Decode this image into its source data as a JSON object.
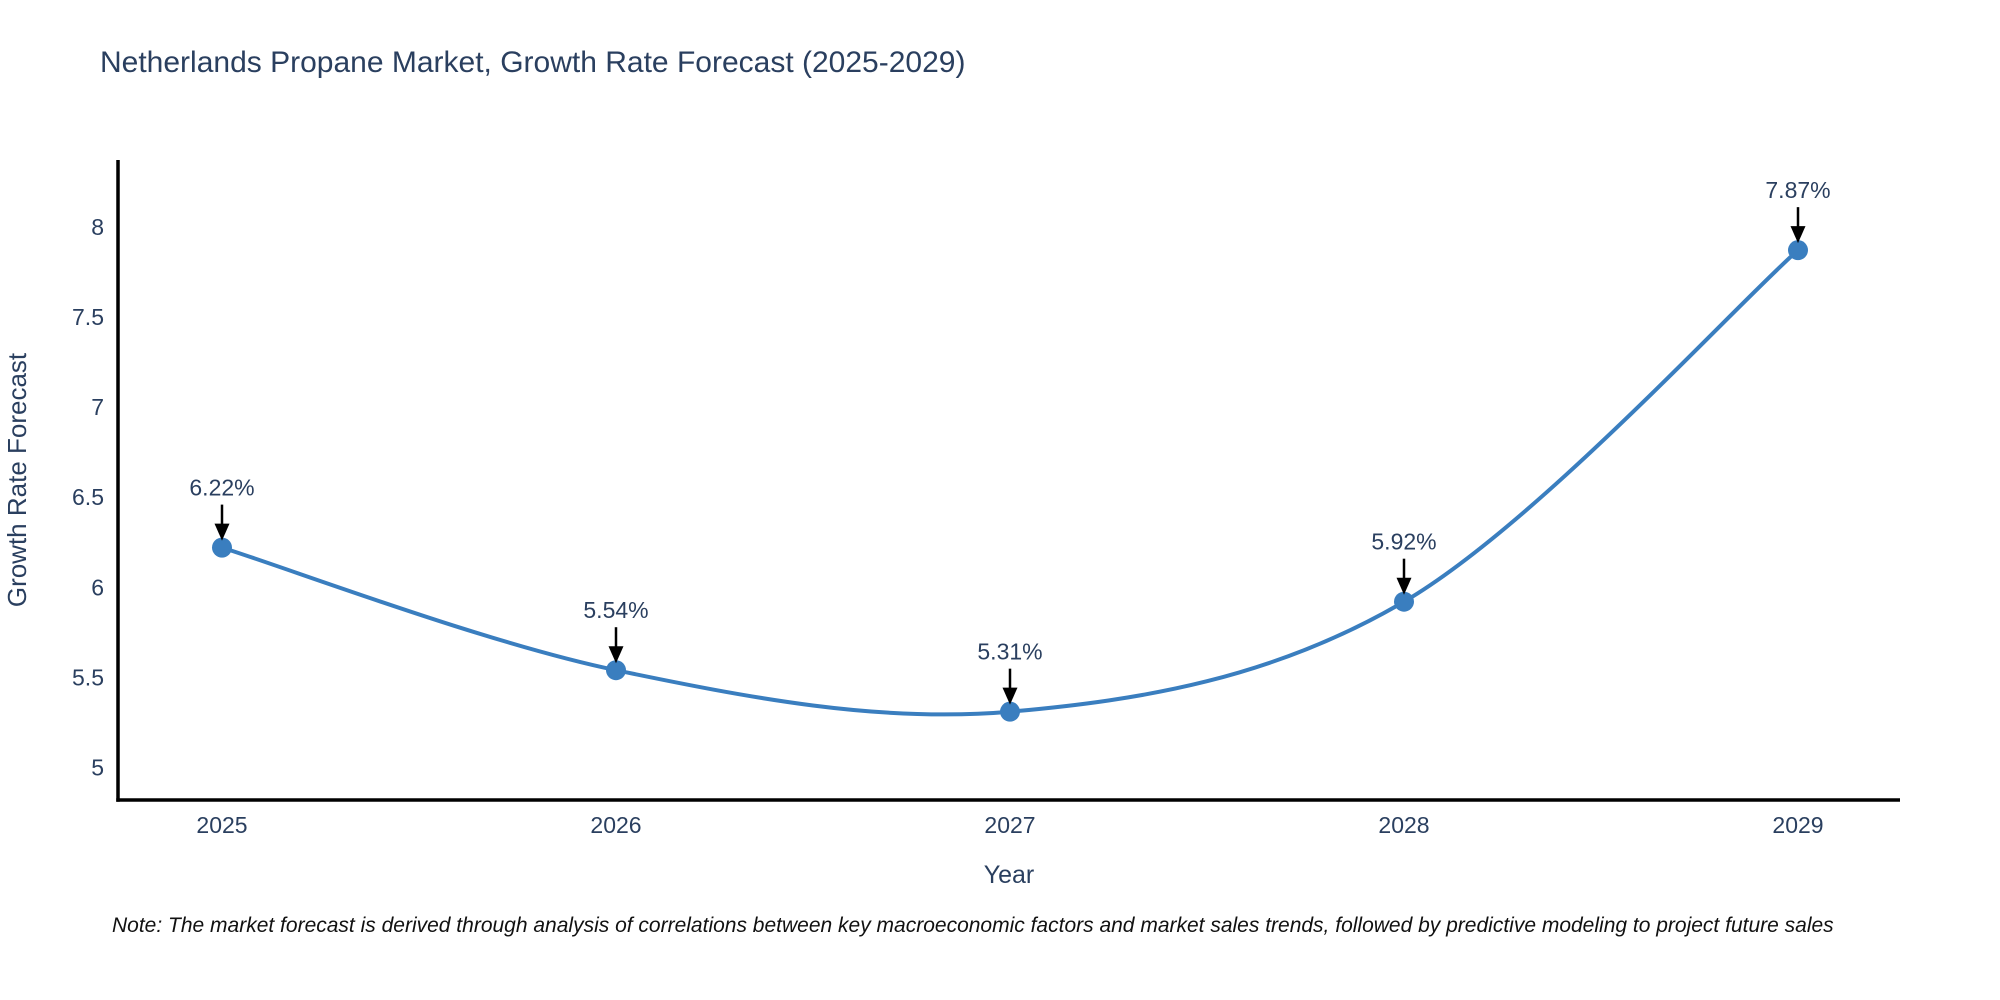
{
  "title": "Netherlands Propane Market, Growth Rate Forecast (2025-2029)",
  "note": "Note: The market forecast is derived through analysis of correlations between key macroeconomic factors and market sales trends, followed by predictive modeling to project future sales",
  "chart_data": {
    "type": "line",
    "title": "Netherlands Propane Market, Growth Rate Forecast (2025-2029)",
    "xlabel": "Year",
    "ylabel": "Growth Rate Forecast",
    "x": [
      2025,
      2026,
      2027,
      2028,
      2029
    ],
    "series": [
      {
        "name": "Growth Rate Forecast",
        "values": [
          6.22,
          5.54,
          5.31,
          5.92,
          7.87
        ],
        "point_labels": [
          "6.22%",
          "5.54%",
          "5.31%",
          "5.92%",
          "7.87%"
        ]
      }
    ],
    "line_shape": "spline",
    "markers": true,
    "grid": false,
    "legend_position": "none",
    "yticks": [
      5,
      5.5,
      6,
      6.5,
      7,
      7.5,
      8
    ],
    "ylim": [
      4.82,
      8.37
    ],
    "colors": {
      "line": "#3a7ebf",
      "marker": "#3a7ebf",
      "axis_line": "#000000",
      "text": "#2a3f5f",
      "annotation_text": "#2a3f5f",
      "annotation_arrow": "#000000",
      "note_text": "#111111",
      "background": "#ffffff"
    }
  }
}
